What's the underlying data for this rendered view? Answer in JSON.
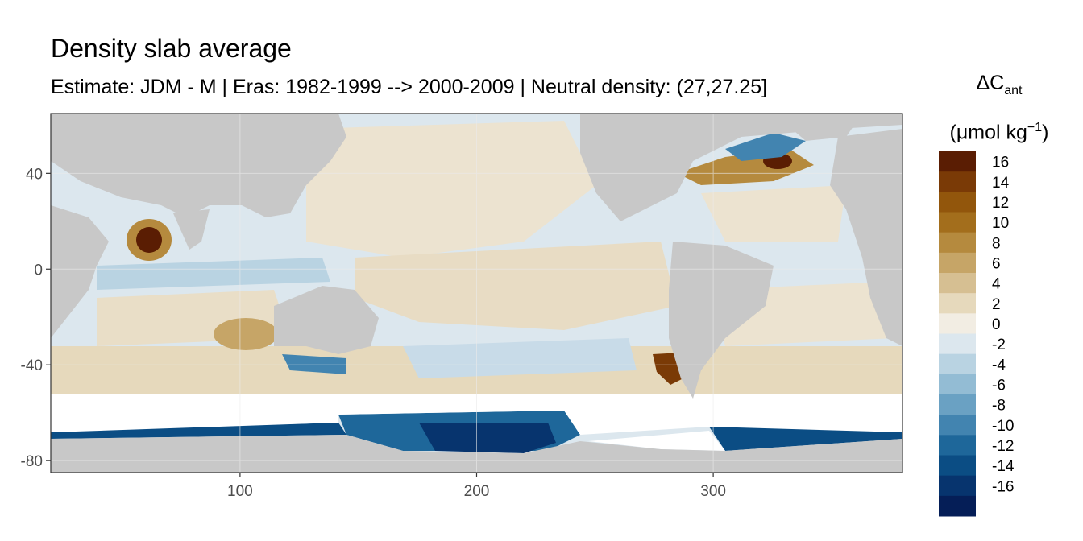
{
  "chart_data": {
    "type": "heatmap",
    "title": "Density slab average",
    "subtitle": "Estimate: JDM - M | Eras: 1982-1999 --> 2000-2009 | Neutral density: (27,27.25]",
    "legend": {
      "title_main": "ΔC",
      "title_sub": "ant",
      "unit_main": "(μmol kg",
      "unit_sup": "−1",
      "unit_close": ")",
      "bins": [
        {
          "label": "16",
          "color": "#5a1d03"
        },
        {
          "label": "14",
          "color": "#7a3a06"
        },
        {
          "label": "12",
          "color": "#92560c"
        },
        {
          "label": "10",
          "color": "#a36e1c"
        },
        {
          "label": "8",
          "color": "#b58a3e"
        },
        {
          "label": "6",
          "color": "#c6a567"
        },
        {
          "label": "4",
          "color": "#d6bf92"
        },
        {
          "label": "2",
          "color": "#e6d9bc"
        },
        {
          "label": "0",
          "color": "#f2ede3"
        },
        {
          "label": "-2",
          "color": "#dce7ee"
        },
        {
          "label": "-4",
          "color": "#b9d3e2"
        },
        {
          "label": "-6",
          "color": "#93bcd4"
        },
        {
          "label": "-8",
          "color": "#6aa1c3"
        },
        {
          "label": "-10",
          "color": "#4284b0"
        },
        {
          "label": "-12",
          "color": "#1e679a"
        },
        {
          "label": "-14",
          "color": "#0b4d84"
        },
        {
          "label": "-16",
          "color": "#07346e"
        },
        {
          "label": "",
          "color": "#051e57"
        }
      ]
    },
    "x_axis": {
      "ticks": [
        100,
        200,
        300
      ],
      "range": [
        20,
        380
      ]
    },
    "y_axis": {
      "ticks": [
        40,
        0,
        -40,
        -80
      ],
      "range": [
        -85,
        65
      ]
    },
    "colors": {
      "land": "#c8c8c8",
      "ocean_default": "#dce7ee",
      "no_data": "#ffffff",
      "grid": "#ebebeb",
      "panel_border": "#333333"
    },
    "features": [
      {
        "lon": 63,
        "lat": 12,
        "value": 14
      },
      {
        "lon": 280,
        "lat": -42,
        "value": 16
      },
      {
        "lon": 325,
        "lat": 45,
        "value": 14
      },
      {
        "lon": 200,
        "lat": -72,
        "value": -14
      },
      {
        "lon": 150,
        "lat": -38,
        "value": -8
      },
      {
        "lon": 335,
        "lat": 55,
        "value": -8
      },
      {
        "lon": 200,
        "lat": 10,
        "value": 4
      },
      {
        "lon": 120,
        "lat": -25,
        "value": 6
      }
    ]
  }
}
